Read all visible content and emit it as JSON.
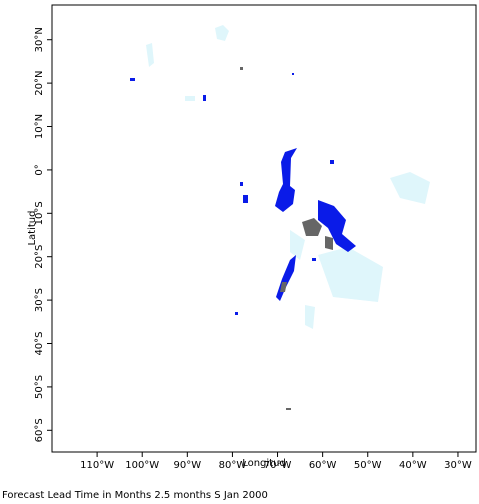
{
  "map": {
    "x_label": "Longitud",
    "y_label": "Latitud",
    "caption": "Forecast Lead Time in Months 2.5 months S Jan 2000",
    "xlim": [
      -120,
      -26
    ],
    "ylim": [
      -65,
      38
    ],
    "xticks": [
      {
        "value": -110,
        "label": "110°W"
      },
      {
        "value": -100,
        "label": "100°W"
      },
      {
        "value": -90,
        "label": "90°W"
      },
      {
        "value": -80,
        "label": "80°W"
      },
      {
        "value": -70,
        "label": "70°W"
      },
      {
        "value": -60,
        "label": "60°W"
      },
      {
        "value": -50,
        "label": "50°W"
      },
      {
        "value": -40,
        "label": "40°W"
      },
      {
        "value": -30,
        "label": "30°W"
      }
    ],
    "yticks": [
      {
        "value": 30,
        "label": "30°N"
      },
      {
        "value": 20,
        "label": "20°N"
      },
      {
        "value": 10,
        "label": "10°N"
      },
      {
        "value": 0,
        "label": "0°"
      },
      {
        "value": -10,
        "label": "10°S"
      },
      {
        "value": -20,
        "label": "20°S"
      },
      {
        "value": -30,
        "label": "30°S"
      },
      {
        "value": -40,
        "label": "40°S"
      },
      {
        "value": -50,
        "label": "50°S"
      },
      {
        "value": -60,
        "label": "60°S"
      }
    ]
  }
}
